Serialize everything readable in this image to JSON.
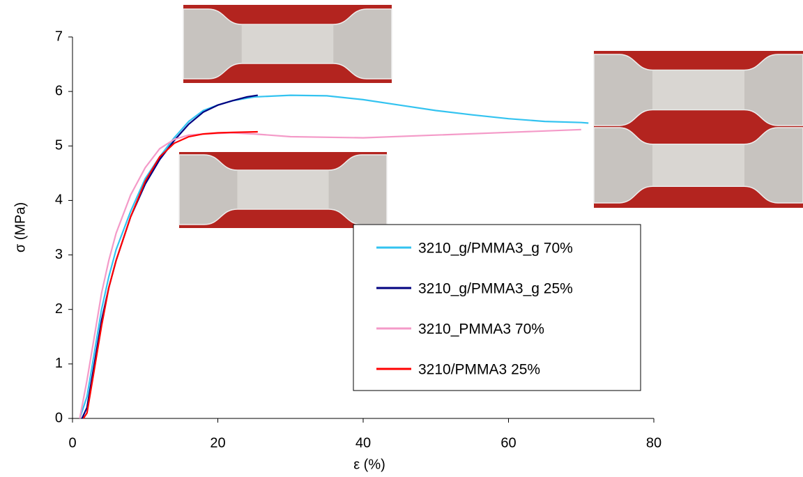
{
  "chart_data": {
    "type": "line",
    "x_label": "ε (%)",
    "y_label": "σ (MPa)",
    "xlim": [
      0,
      80
    ],
    "xticks": [
      0,
      20,
      40,
      60,
      80
    ],
    "ylim": [
      0,
      7
    ],
    "yticks": [
      0,
      1,
      2,
      3,
      4,
      5,
      6,
      7
    ],
    "series": [
      {
        "name": "3210_g/PMMA3_g 70%",
        "color": "#33c3f0",
        "x": [
          1,
          2,
          3,
          4,
          5,
          6,
          8,
          10,
          12,
          14,
          16,
          18,
          20,
          22,
          25,
          30,
          35,
          40,
          45,
          50,
          55,
          60,
          65,
          70,
          71
        ],
        "values": [
          0,
          0.4,
          1.2,
          2.0,
          2.6,
          3.1,
          3.8,
          4.4,
          4.8,
          5.15,
          5.45,
          5.65,
          5.75,
          5.83,
          5.9,
          5.93,
          5.92,
          5.85,
          5.75,
          5.65,
          5.57,
          5.5,
          5.45,
          5.43,
          5.42
        ]
      },
      {
        "name": "3210_g/PMMA3_g 25%",
        "color": "#000080",
        "x": [
          1.3,
          2,
          3,
          4,
          5,
          6,
          8,
          10,
          12,
          14,
          16,
          18,
          20,
          22,
          24,
          25.5
        ],
        "values": [
          0,
          0.2,
          1.0,
          1.8,
          2.4,
          2.9,
          3.7,
          4.3,
          4.75,
          5.1,
          5.4,
          5.62,
          5.75,
          5.83,
          5.9,
          5.93
        ]
      },
      {
        "name": "3210_PMMA3 70%",
        "color": "#f49ac8",
        "x": [
          1,
          2,
          3,
          4,
          5,
          6,
          8,
          10,
          12,
          14,
          16,
          18,
          20,
          22,
          25,
          30,
          40,
          50,
          60,
          70
        ],
        "values": [
          0,
          0.7,
          1.5,
          2.3,
          2.9,
          3.4,
          4.1,
          4.6,
          4.95,
          5.12,
          5.2,
          5.22,
          5.23,
          5.24,
          5.22,
          5.17,
          5.15,
          5.2,
          5.25,
          5.3
        ]
      },
      {
        "name": "3210/PMMA3 25%",
        "color": "#ff0000",
        "x": [
          1.5,
          2,
          3,
          4,
          5,
          6,
          8,
          10,
          12,
          14,
          16,
          18,
          20,
          22,
          25.5
        ],
        "values": [
          0,
          0.1,
          0.9,
          1.7,
          2.4,
          2.9,
          3.7,
          4.35,
          4.8,
          5.05,
          5.17,
          5.22,
          5.24,
          5.25,
          5.26
        ]
      }
    ]
  }
}
